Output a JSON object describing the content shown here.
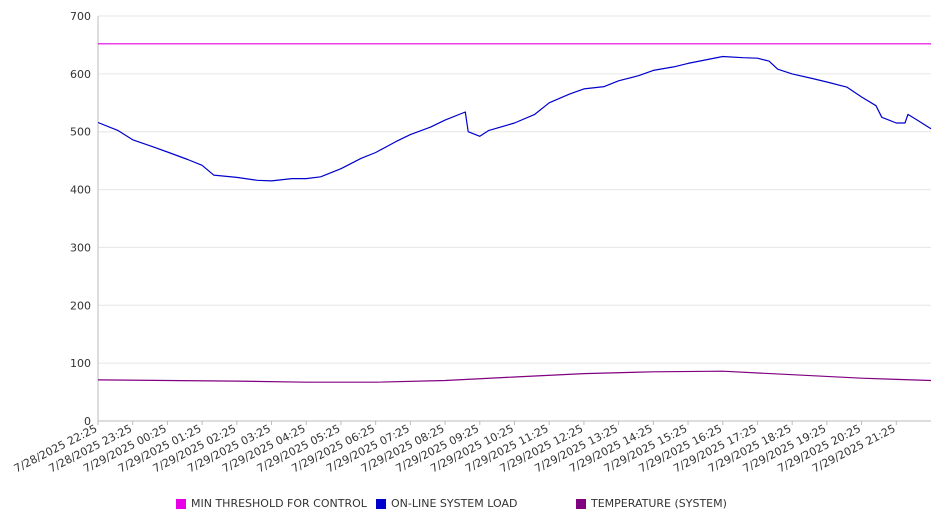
{
  "chart_data": {
    "type": "line",
    "title": "",
    "xlabel": "",
    "ylabel": "",
    "ylim": [
      0,
      700
    ],
    "yticks": [
      0,
      100,
      200,
      300,
      400,
      500,
      600,
      700
    ],
    "grid": true,
    "legend_position": "bottom",
    "x_ticks": [
      "7/28/2025 22:25",
      "7/28/2025 23:25",
      "7/29/2025 00:25",
      "7/29/2025 01:25",
      "7/29/2025 02:25",
      "7/29/2025 03:25",
      "7/29/2025 04:25",
      "7/29/2025 05:25",
      "7/29/2025 06:25",
      "7/29/2025 07:25",
      "7/29/2025 08:25",
      "7/29/2025 09:25",
      "7/29/2025 10:25",
      "7/29/2025 11:25",
      "7/29/2025 12:25",
      "7/29/2025 13:25",
      "7/29/2025 14:25",
      "7/29/2025 15:25",
      "7/29/2025 16:25",
      "7/29/2025 17:25",
      "7/29/2025 18:25",
      "7/29/2025 19:25",
      "7/29/2025 20:25",
      "7/29/2025 21:25"
    ],
    "x_range": [
      "7/28/2025 22:25",
      "7/29/2025 22:25"
    ],
    "series": [
      {
        "name": "MIN THRESHOLD FOR CONTROL",
        "color": "#e600e6",
        "points": [
          [
            "7/28/2025 22:25",
            652
          ],
          [
            "7/29/2025 22:25",
            652
          ]
        ]
      },
      {
        "name": "ON-LINE SYSTEM LOAD",
        "color": "#0000cc",
        "points": [
          [
            "7/28/2025 22:25",
            516
          ],
          [
            "7/28/2025 23:00",
            502
          ],
          [
            "7/28/2025 23:25",
            486
          ],
          [
            "7/29/2025 00:00",
            474
          ],
          [
            "7/29/2025 00:25",
            465
          ],
          [
            "7/29/2025 01:00",
            452
          ],
          [
            "7/29/2025 01:25",
            442
          ],
          [
            "7/29/2025 01:45",
            425
          ],
          [
            "7/29/2025 02:25",
            421
          ],
          [
            "7/29/2025 03:00",
            416
          ],
          [
            "7/29/2025 03:25",
            415
          ],
          [
            "7/29/2025 04:00",
            419
          ],
          [
            "7/29/2025 04:25",
            419
          ],
          [
            "7/29/2025 04:50",
            422
          ],
          [
            "7/29/2025 05:25",
            436
          ],
          [
            "7/29/2025 06:00",
            454
          ],
          [
            "7/29/2025 06:25",
            464
          ],
          [
            "7/29/2025 07:00",
            483
          ],
          [
            "7/29/2025 07:25",
            495
          ],
          [
            "7/29/2025 08:00",
            508
          ],
          [
            "7/29/2025 08:25",
            520
          ],
          [
            "7/29/2025 09:00",
            534
          ],
          [
            "7/29/2025 09:05",
            500
          ],
          [
            "7/29/2025 09:25",
            492
          ],
          [
            "7/29/2025 09:40",
            502
          ],
          [
            "7/29/2025 10:25",
            515
          ],
          [
            "7/29/2025 11:00",
            530
          ],
          [
            "7/29/2025 11:25",
            550
          ],
          [
            "7/29/2025 12:00",
            565
          ],
          [
            "7/29/2025 12:25",
            574
          ],
          [
            "7/29/2025 13:00",
            578
          ],
          [
            "7/29/2025 13:25",
            588
          ],
          [
            "7/29/2025 14:00",
            597
          ],
          [
            "7/29/2025 14:25",
            606
          ],
          [
            "7/29/2025 15:00",
            612
          ],
          [
            "7/29/2025 15:25",
            618
          ],
          [
            "7/29/2025 16:00",
            625
          ],
          [
            "7/29/2025 16:25",
            630
          ],
          [
            "7/29/2025 17:00",
            628
          ],
          [
            "7/29/2025 17:25",
            627
          ],
          [
            "7/29/2025 17:45",
            622
          ],
          [
            "7/29/2025 18:00",
            608
          ],
          [
            "7/29/2025 18:25",
            600
          ],
          [
            "7/29/2025 19:00",
            592
          ],
          [
            "7/29/2025 19:25",
            586
          ],
          [
            "7/29/2025 20:00",
            577
          ],
          [
            "7/29/2025 20:25",
            560
          ],
          [
            "7/29/2025 20:50",
            545
          ],
          [
            "7/29/2025 21:00",
            525
          ],
          [
            "7/29/2025 21:25",
            515
          ],
          [
            "7/29/2025 21:40",
            515
          ],
          [
            "7/29/2025 21:45",
            530
          ],
          [
            "7/29/2025 22:00",
            521
          ],
          [
            "7/29/2025 22:25",
            505
          ]
        ]
      },
      {
        "name": "TEMPERATURE (SYSTEM)",
        "color": "#800080",
        "points": [
          [
            "7/28/2025 22:25",
            71
          ],
          [
            "7/29/2025 00:25",
            70
          ],
          [
            "7/29/2025 02:25",
            69
          ],
          [
            "7/29/2025 04:25",
            67
          ],
          [
            "7/29/2025 06:25",
            67
          ],
          [
            "7/29/2025 08:25",
            70
          ],
          [
            "7/29/2025 10:25",
            76
          ],
          [
            "7/29/2025 12:25",
            82
          ],
          [
            "7/29/2025 14:25",
            85
          ],
          [
            "7/29/2025 16:25",
            86
          ],
          [
            "7/29/2025 18:25",
            80
          ],
          [
            "7/29/2025 20:25",
            74
          ],
          [
            "7/29/2025 22:25",
            70
          ]
        ]
      }
    ]
  }
}
